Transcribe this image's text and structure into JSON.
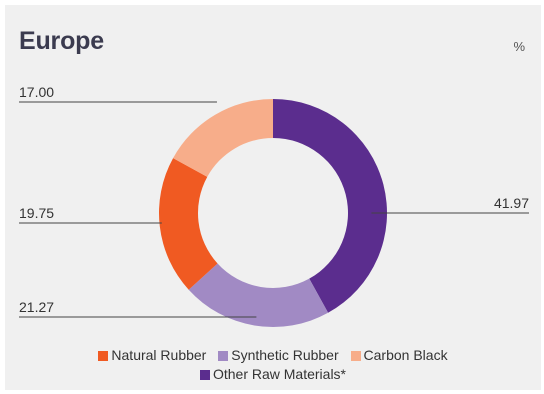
{
  "header": {
    "title": "Europe",
    "unit": "%"
  },
  "chart_data": {
    "type": "pie",
    "variant": "donut",
    "title": "Europe",
    "unit": "%",
    "categories": [
      "Natural Rubber",
      "Synthetic Rubber",
      "Carbon Black",
      "Other Raw Materials*"
    ],
    "values": [
      19.75,
      21.27,
      17.0,
      41.97
    ],
    "value_labels": [
      "19.75",
      "21.27",
      "17.00",
      "41.97"
    ],
    "colors": [
      "#f05a22",
      "#a18ac4",
      "#f7ad8a",
      "#5b2d8e"
    ],
    "legend_placement": "bottom"
  },
  "legend": {
    "row1": [
      {
        "label": "Natural Rubber",
        "color": "#f05a22"
      },
      {
        "label": "Synthetic Rubber",
        "color": "#a18ac4"
      },
      {
        "label": "Carbon Black",
        "color": "#f7ad8a"
      }
    ],
    "row2": [
      {
        "label": "Other Raw Materials*",
        "color": "#5b2d8e"
      }
    ]
  }
}
